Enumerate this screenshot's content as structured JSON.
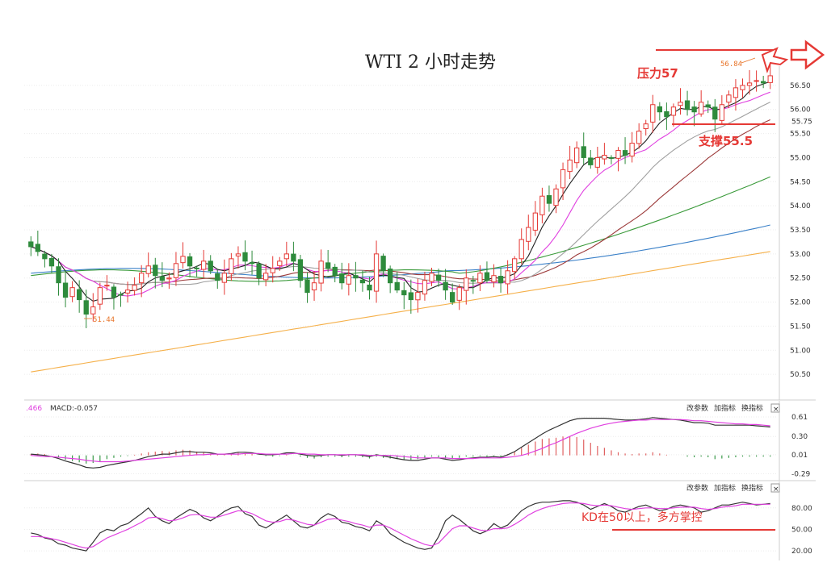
{
  "chart_data": {
    "type": "candlestick",
    "title": "WTI 2 小时走势",
    "price_axis": {
      "ticks": [
        "56.50",
        "56.00",
        "55.75",
        "55.50",
        "55.00",
        "54.50",
        "54.00",
        "53.50",
        "53.00",
        "52.50",
        "52.00",
        "51.50",
        "51.00",
        "50.50"
      ],
      "min": 50.0,
      "max": 56.9
    },
    "markers": {
      "high_label": "56.84",
      "low_label": "51.44"
    },
    "annotations": {
      "resistance": "压力57",
      "support": "支撑55.5",
      "kd_note": "KD在50以上，多方掌控"
    },
    "ma_colors": {
      "ma5": "#222222",
      "ma10": "#e040e0",
      "ma20": "#a0a0a0",
      "ma30": "#9c3a3a",
      "ma60": "#3a9a3a",
      "ma120": "#3a80c8",
      "ma250": "#f5b04a"
    },
    "candles_close": [
      53.15,
      53.05,
      52.9,
      52.75,
      52.4,
      52.1,
      52.3,
      52.05,
      51.75,
      51.9,
      52.3,
      52.35,
      52.1,
      52.15,
      52.25,
      52.35,
      52.6,
      52.75,
      52.55,
      52.45,
      52.5,
      52.8,
      52.95,
      52.75,
      52.7,
      52.85,
      52.65,
      52.45,
      52.6,
      52.9,
      53.0,
      52.85,
      52.8,
      52.5,
      52.6,
      52.7,
      52.85,
      53.0,
      52.85,
      52.45,
      52.2,
      52.4,
      52.85,
      52.7,
      52.55,
      52.4,
      52.55,
      52.5,
      52.4,
      52.25,
      53.0,
      52.65,
      52.4,
      52.25,
      52.15,
      52.05,
      52.2,
      52.45,
      52.6,
      52.45,
      52.25,
      52.0,
      52.3,
      52.5,
      52.45,
      52.6,
      52.45,
      52.55,
      52.4,
      52.65,
      52.9,
      53.3,
      53.55,
      53.85,
      54.2,
      54.05,
      54.35,
      54.75,
      54.95,
      55.2,
      55.0,
      54.85,
      55.0,
      55.05,
      55.0,
      55.15,
      55.05,
      55.3,
      55.55,
      55.7,
      56.1,
      55.95,
      55.85,
      56.05,
      56.15,
      56.0,
      55.95,
      56.15,
      56.05,
      55.8,
      56.1,
      56.3,
      56.45,
      56.5,
      56.55,
      56.6,
      56.55,
      56.7
    ],
    "macd": {
      "label": "MACD:-0.057",
      "header_value": ".466",
      "ticks": [
        "0.61",
        "0.30",
        "0.01",
        "-0.29"
      ],
      "min": -0.35,
      "max": 0.7,
      "histogram": [
        0.02,
        0.03,
        0.02,
        0.0,
        -0.03,
        -0.07,
        -0.09,
        -0.11,
        -0.13,
        -0.12,
        -0.1,
        -0.06,
        -0.04,
        -0.02,
        -0.01,
        0.01,
        0.03,
        0.05,
        0.06,
        0.07,
        0.06,
        0.08,
        0.09,
        0.08,
        0.06,
        0.05,
        0.03,
        0.02,
        0.02,
        0.03,
        0.04,
        0.03,
        0.02,
        0.0,
        -0.01,
        -0.02,
        -0.01,
        0.01,
        0.0,
        -0.02,
        -0.04,
        -0.05,
        -0.03,
        -0.02,
        -0.02,
        -0.03,
        -0.02,
        -0.02,
        -0.03,
        -0.05,
        -0.02,
        -0.04,
        -0.05,
        -0.06,
        -0.07,
        -0.07,
        -0.06,
        -0.04,
        -0.02,
        -0.03,
        -0.05,
        -0.06,
        -0.04,
        -0.02,
        -0.02,
        -0.01,
        -0.02,
        -0.01,
        -0.02,
        0.02,
        0.06,
        0.12,
        0.17,
        0.22,
        0.26,
        0.27,
        0.28,
        0.3,
        0.3,
        0.29,
        0.25,
        0.2,
        0.15,
        0.12,
        0.08,
        0.05,
        0.03,
        0.02,
        0.03,
        0.03,
        0.05,
        0.03,
        0.01,
        0.0,
        0.0,
        -0.02,
        -0.03,
        -0.02,
        -0.03,
        -0.06,
        -0.05,
        -0.04,
        -0.03,
        -0.02,
        -0.02,
        -0.02,
        -0.02,
        -0.02
      ],
      "dif": [
        0.02,
        0.01,
        0.0,
        -0.02,
        -0.05,
        -0.09,
        -0.12,
        -0.15,
        -0.19,
        -0.2,
        -0.19,
        -0.16,
        -0.14,
        -0.12,
        -0.1,
        -0.08,
        -0.05,
        -0.02,
        0.0,
        0.02,
        0.02,
        0.04,
        0.06,
        0.06,
        0.05,
        0.05,
        0.04,
        0.02,
        0.02,
        0.03,
        0.05,
        0.05,
        0.04,
        0.02,
        0.01,
        0.01,
        0.02,
        0.04,
        0.04,
        0.02,
        0.0,
        -0.01,
        0.0,
        0.01,
        0.01,
        0.0,
        0.01,
        0.01,
        0.0,
        -0.02,
        0.01,
        -0.01,
        -0.03,
        -0.05,
        -0.07,
        -0.08,
        -0.08,
        -0.06,
        -0.04,
        -0.04,
        -0.06,
        -0.08,
        -0.07,
        -0.05,
        -0.04,
        -0.03,
        -0.03,
        -0.02,
        -0.03,
        0.01,
        0.06,
        0.13,
        0.2,
        0.27,
        0.34,
        0.4,
        0.45,
        0.5,
        0.55,
        0.58,
        0.59,
        0.59,
        0.59,
        0.59,
        0.58,
        0.57,
        0.56,
        0.56,
        0.57,
        0.58,
        0.6,
        0.59,
        0.58,
        0.57,
        0.56,
        0.54,
        0.52,
        0.52,
        0.51,
        0.48,
        0.48,
        0.48,
        0.48,
        0.48,
        0.48,
        0.47,
        0.46,
        0.45
      ],
      "dea": [
        0.0,
        -0.01,
        -0.02,
        -0.02,
        -0.03,
        -0.04,
        -0.05,
        -0.06,
        -0.08,
        -0.09,
        -0.1,
        -0.1,
        -0.1,
        -0.1,
        -0.09,
        -0.08,
        -0.07,
        -0.06,
        -0.05,
        -0.04,
        -0.03,
        -0.02,
        -0.01,
        0.0,
        0.01,
        0.01,
        0.02,
        0.02,
        0.02,
        0.02,
        0.02,
        0.03,
        0.03,
        0.03,
        0.02,
        0.02,
        0.02,
        0.02,
        0.03,
        0.03,
        0.02,
        0.02,
        0.01,
        0.01,
        0.01,
        0.01,
        0.01,
        0.01,
        0.01,
        0.0,
        0.0,
        0.0,
        0.0,
        -0.01,
        -0.02,
        -0.03,
        -0.04,
        -0.04,
        -0.04,
        -0.04,
        -0.04,
        -0.05,
        -0.05,
        -0.05,
        -0.05,
        -0.04,
        -0.04,
        -0.04,
        -0.04,
        -0.03,
        -0.02,
        0.0,
        0.03,
        0.07,
        0.11,
        0.16,
        0.2,
        0.25,
        0.3,
        0.35,
        0.39,
        0.43,
        0.46,
        0.49,
        0.51,
        0.53,
        0.54,
        0.55,
        0.56,
        0.56,
        0.57,
        0.57,
        0.57,
        0.57,
        0.57,
        0.56,
        0.55,
        0.55,
        0.54,
        0.53,
        0.52,
        0.51,
        0.5,
        0.5,
        0.49,
        0.49,
        0.48,
        0.47
      ]
    },
    "kd": {
      "ticks": [
        "80.00",
        "50.00",
        "20.00"
      ],
      "min": 10,
      "max": 100,
      "k": [
        45,
        43,
        38,
        36,
        30,
        28,
        24,
        22,
        20,
        32,
        45,
        50,
        48,
        55,
        58,
        65,
        72,
        80,
        68,
        62,
        58,
        66,
        72,
        78,
        74,
        66,
        62,
        68,
        75,
        80,
        82,
        72,
        68,
        56,
        52,
        58,
        64,
        70,
        62,
        54,
        52,
        56,
        66,
        72,
        68,
        60,
        58,
        54,
        52,
        48,
        62,
        56,
        44,
        38,
        32,
        28,
        24,
        22,
        24,
        40,
        62,
        70,
        64,
        56,
        48,
        44,
        48,
        58,
        52,
        56,
        66,
        76,
        82,
        86,
        88,
        88,
        89,
        90,
        90,
        88,
        84,
        78,
        82,
        86,
        82,
        76,
        74,
        78,
        82,
        84,
        80,
        76,
        78,
        82,
        84,
        82,
        80,
        74,
        76,
        80,
        84,
        84,
        86,
        88,
        86,
        84,
        85,
        86
      ],
      "d": [
        40,
        40,
        39,
        37,
        35,
        32,
        29,
        26,
        24,
        26,
        32,
        38,
        42,
        46,
        50,
        55,
        60,
        66,
        67,
        65,
        62,
        63,
        66,
        70,
        71,
        69,
        67,
        67,
        70,
        73,
        76,
        75,
        72,
        67,
        62,
        60,
        61,
        64,
        63,
        60,
        57,
        56,
        60,
        64,
        65,
        63,
        61,
        58,
        56,
        53,
        56,
        56,
        52,
        47,
        42,
        37,
        33,
        29,
        27,
        31,
        41,
        51,
        55,
        55,
        52,
        49,
        48,
        51,
        51,
        52,
        57,
        63,
        70,
        75,
        79,
        82,
        84,
        86,
        87,
        87,
        86,
        84,
        83,
        84,
        83,
        81,
        79,
        78,
        79,
        80,
        80,
        79,
        79,
        80,
        81,
        81,
        81,
        79,
        78,
        79,
        81,
        82,
        83,
        85,
        85,
        85,
        85,
        85
      ]
    }
  },
  "buttons": {
    "param": "改参数",
    "add": "加指标",
    "swap": "换指标",
    "close": "×"
  },
  "colors": {
    "up": "#e53935",
    "down": "#2e8b3c",
    "annotation": "#e53935",
    "diff": "#333333",
    "dea": "#e040e0"
  }
}
